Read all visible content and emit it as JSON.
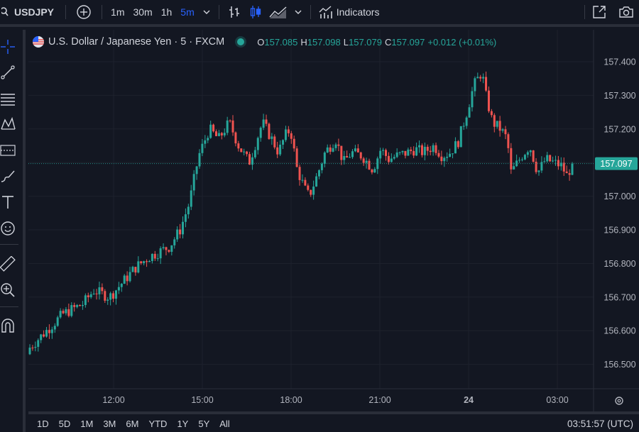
{
  "toolbar": {
    "symbol": "USDJPY",
    "intervals": [
      "1m",
      "30m",
      "1h",
      "5m"
    ],
    "active_interval": "5m",
    "indicators_label": "Indicators"
  },
  "legend": {
    "title": "U.S. Dollar / Japanese Yen · 5 · FXCM",
    "o_label": "O",
    "o_value": "157.085",
    "h_label": "H",
    "h_value": "157.098",
    "l_label": "L",
    "l_value": "157.079",
    "c_label": "C",
    "c_value": "157.097",
    "change": "+0.012 (+0.01%)"
  },
  "bottom": {
    "ranges": [
      "1D",
      "5D",
      "1M",
      "3M",
      "6M",
      "YTD",
      "1Y",
      "5Y",
      "All"
    ],
    "clock": "03:51:57 (UTC)"
  },
  "colors": {
    "up": "#26a69a",
    "down": "#ef5350",
    "price_badge": "#26a69a",
    "accent": "#2962ff",
    "background": "#131722"
  },
  "chart_data": {
    "type": "candlestick",
    "y_ticks": [
      "157.400",
      "157.300",
      "157.200",
      "157.100",
      "157.000",
      "156.900",
      "156.800",
      "156.700",
      "156.600",
      "156.500"
    ],
    "ylim": [
      156.44,
      157.48
    ],
    "x_ticks": [
      "12:00",
      "15:00",
      "18:00",
      "21:00",
      "24",
      "03:00"
    ],
    "x_tick_bold": "24",
    "last_price": "157.097",
    "close_path": [
      [
        0.0,
        156.55
      ],
      [
        2.5,
        156.65
      ],
      [
        4.0,
        156.68
      ],
      [
        4.8,
        156.72
      ],
      [
        6.0,
        156.7
      ],
      [
        8.0,
        156.79
      ],
      [
        9.0,
        156.82
      ],
      [
        10.5,
        156.85
      ],
      [
        11.3,
        156.9
      ],
      [
        12.0,
        156.98
      ],
      [
        12.7,
        157.12
      ],
      [
        13.5,
        157.2
      ],
      [
        14.2,
        157.17
      ],
      [
        15.0,
        157.22
      ],
      [
        15.7,
        157.15
      ],
      [
        16.5,
        157.1
      ],
      [
        17.0,
        157.16
      ],
      [
        17.5,
        157.22
      ],
      [
        18.2,
        157.17
      ],
      [
        18.7,
        157.13
      ],
      [
        19.2,
        157.18
      ],
      [
        19.6,
        157.2
      ],
      [
        20.1,
        157.08
      ],
      [
        20.7,
        157.02
      ],
      [
        21.0,
        157.0
      ],
      [
        21.6,
        157.06
      ],
      [
        22.2,
        157.13
      ],
      [
        23.0,
        157.17
      ],
      [
        23.6,
        157.1
      ],
      [
        24.2,
        157.13
      ],
      [
        25.0,
        157.12
      ],
      [
        25.8,
        157.08
      ],
      [
        26.4,
        157.14
      ],
      [
        27.0,
        157.11
      ],
      [
        27.6,
        157.12
      ],
      [
        28.4,
        157.13
      ],
      [
        29.0,
        157.14
      ],
      [
        29.6,
        157.13
      ],
      [
        30.4,
        157.15
      ],
      [
        31.0,
        157.12
      ],
      [
        31.6,
        157.13
      ],
      [
        32.2,
        157.16
      ],
      [
        32.8,
        157.24
      ],
      [
        33.4,
        157.33
      ],
      [
        34.0,
        157.37
      ],
      [
        34.3,
        157.3
      ],
      [
        34.8,
        157.22
      ],
      [
        35.4,
        157.2
      ],
      [
        35.9,
        157.17
      ],
      [
        36.2,
        157.07
      ],
      [
        37.0,
        157.12
      ],
      [
        37.6,
        157.15
      ],
      [
        38.2,
        157.07
      ],
      [
        38.8,
        157.11
      ],
      [
        39.4,
        157.1
      ],
      [
        40.0,
        157.09
      ],
      [
        40.4,
        157.06
      ],
      [
        40.8,
        157.097
      ]
    ]
  }
}
